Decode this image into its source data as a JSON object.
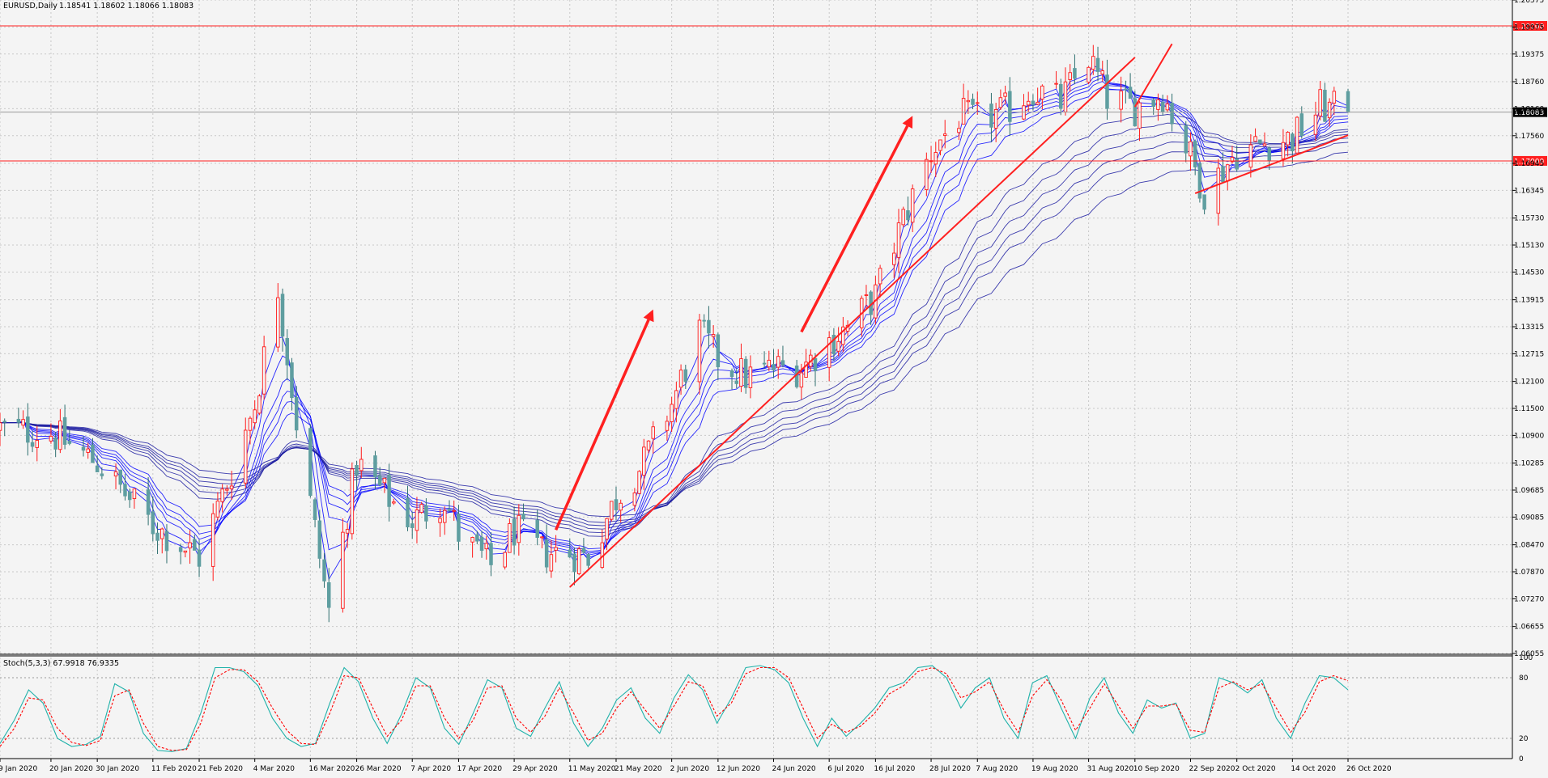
{
  "header": {
    "symbol_label": "EURUSD,Daily",
    "ohlc_label": "1.18541 1.18602 1.18066 1.18083"
  },
  "stoch": {
    "label": "Stoch(5,3,3) 67.9918 76.9335"
  },
  "colors": {
    "background": "#f4f4f4",
    "grid": "#c8c8c8",
    "bull": "#ff1c1c",
    "bear": "#5f9ea0",
    "ma": "#1a1aa0",
    "ma_highlight": "#0000ff",
    "trendline": "#ff2020",
    "stoch_main": "#20b2aa",
    "stoch_signal": "#ff0000"
  },
  "chart_data": [
    {
      "type": "candlestick",
      "title": "EURUSD,Daily",
      "ylim": [
        1.06055,
        1.20575
      ],
      "y_ticks": [
        "1.20575",
        "1.19975",
        "1.19375",
        "1.18760",
        "1.18160",
        "1.17560",
        "1.16945",
        "1.16345",
        "1.15730",
        "1.15130",
        "1.14530",
        "1.13915",
        "1.13315",
        "1.12715",
        "1.12100",
        "1.11500",
        "1.10900",
        "1.10285",
        "1.09685",
        "1.09085",
        "1.08470",
        "1.07870",
        "1.07270",
        "1.06655",
        "1.06055"
      ],
      "x_tick_labels": [
        "9 Jan 2020",
        "20 Jan 2020",
        "30 Jan 2020",
        "11 Feb 2020",
        "21 Feb 2020",
        "4 Mar 2020",
        "16 Mar 2020",
        "26 Mar 2020",
        "7 Apr 2020",
        "17 Apr 2020",
        "29 Apr 2020",
        "11 May 2020",
        "21 May 2020",
        "2 Jun 2020",
        "12 Jun 2020",
        "24 Jun 2020",
        "6 Jul 2020",
        "16 Jul 2020",
        "28 Jul 2020",
        "7 Aug 2020",
        "19 Aug 2020",
        "31 Aug 2020",
        "10 Sep 2020",
        "22 Sep 2020",
        "2 Oct 2020",
        "14 Oct 2020",
        "26 Oct 2020"
      ],
      "horizontal_levels": [
        {
          "price": 1.2,
          "label": "1.20000"
        },
        {
          "price": 1.17,
          "label": "1.17000"
        }
      ],
      "current_price": {
        "price": 1.18083,
        "label": "1.18083"
      },
      "close_path": [
        {
          "date": "9 Jan 2020",
          "close": 1.1105
        },
        {
          "date": "20 Jan 2020",
          "close": 1.1095
        },
        {
          "date": "30 Jan 2020",
          "close": 1.103
        },
        {
          "date": "11 Feb 2020",
          "close": 1.089
        },
        {
          "date": "21 Feb 2020",
          "close": 1.082
        },
        {
          "date": "28 Feb 2020",
          "close": 1.101
        },
        {
          "date": "4 Mar 2020",
          "close": 1.116
        },
        {
          "date": "9 Mar 2020",
          "close": 1.142
        },
        {
          "date": "13 Mar 2020",
          "close": 1.112
        },
        {
          "date": "20 Mar 2020",
          "close": 1.07
        },
        {
          "date": "26 Mar 2020",
          "close": 1.103
        },
        {
          "date": "1 Apr 2020",
          "close": 1.096
        },
        {
          "date": "7 Apr 2020",
          "close": 1.09
        },
        {
          "date": "14 Apr 2020",
          "close": 1.095
        },
        {
          "date": "17 Apr 2020",
          "close": 1.087
        },
        {
          "date": "24 Apr 2020",
          "close": 1.08
        },
        {
          "date": "29 Apr 2020",
          "close": 1.088
        },
        {
          "date": "5 May 2020",
          "close": 1.083
        },
        {
          "date": "11 May 2020",
          "close": 1.083
        },
        {
          "date": "15 May 2020",
          "close": 1.082
        },
        {
          "date": "21 May 2020",
          "close": 1.095
        },
        {
          "date": "27 May 2020",
          "close": 1.103
        },
        {
          "date": "2 Jun 2020",
          "close": 1.116
        },
        {
          "date": "8 Jun 2020",
          "close": 1.132
        },
        {
          "date": "12 Jun 2020",
          "close": 1.126
        },
        {
          "date": "18 Jun 2020",
          "close": 1.122
        },
        {
          "date": "24 Jun 2020",
          "close": 1.124
        },
        {
          "date": "30 Jun 2020",
          "close": 1.124
        },
        {
          "date": "6 Jul 2020",
          "close": 1.13
        },
        {
          "date": "10 Jul 2020",
          "close": 1.133
        },
        {
          "date": "16 Jul 2020",
          "close": 1.14
        },
        {
          "date": "22 Jul 2020",
          "close": 1.157
        },
        {
          "date": "28 Jul 2020",
          "close": 1.172
        },
        {
          "date": "3 Aug 2020",
          "close": 1.18
        },
        {
          "date": "7 Aug 2020",
          "close": 1.179
        },
        {
          "date": "13 Aug 2020",
          "close": 1.181
        },
        {
          "date": "19 Aug 2020",
          "close": 1.186
        },
        {
          "date": "25 Aug 2020",
          "close": 1.183
        },
        {
          "date": "31 Aug 2020",
          "close": 1.193
        },
        {
          "date": "4 Sep 2020",
          "close": 1.184
        },
        {
          "date": "10 Sep 2020",
          "close": 1.182
        },
        {
          "date": "16 Sep 2020",
          "close": 1.185
        },
        {
          "date": "22 Sep 2020",
          "close": 1.171
        },
        {
          "date": "25 Sep 2020",
          "close": 1.163
        },
        {
          "date": "2 Oct 2020",
          "close": 1.172
        },
        {
          "date": "8 Oct 2020",
          "close": 1.174
        },
        {
          "date": "14 Oct 2020",
          "close": 1.175
        },
        {
          "date": "20 Oct 2020",
          "close": 1.182
        },
        {
          "date": "26 Oct 2020",
          "close": 1.1808
        }
      ],
      "trendlines": [
        {
          "from": {
            "date": "11 May 2020",
            "price": 1.0753
          },
          "to": {
            "date": "10 Sep 2020",
            "price": 1.193
          }
        },
        {
          "from": {
            "date": "10 Sep 2020",
            "price": 1.182
          },
          "to": {
            "date": "18 Sep 2020",
            "price": 1.196
          }
        },
        {
          "from": {
            "date": "23 Sep 2020",
            "price": 1.1628
          },
          "to": {
            "date": "26 Oct 2020",
            "price": 1.1757
          }
        }
      ],
      "arrows": [
        {
          "from": {
            "date": "8 May 2020",
            "price": 1.088
          },
          "to": {
            "date": "29 May 2020",
            "price": 1.137
          }
        },
        {
          "from": {
            "date": "30 Jun 2020",
            "price": 1.132
          },
          "to": {
            "date": "24 Jul 2020",
            "price": 1.18
          }
        }
      ],
      "moving_average_ribbon": {
        "count": 12,
        "highlight_count": 6
      }
    },
    {
      "type": "line",
      "title": "Stoch(5,3,3) 67.9918 76.9335",
      "ylim": [
        0,
        100
      ],
      "y_ticks": [
        "100",
        "80",
        "20",
        "0"
      ],
      "levels": [
        20,
        80
      ],
      "series": [
        {
          "values": [
            15,
            38,
            68,
            55,
            20,
            12,
            14,
            22,
            74,
            66,
            25,
            8,
            7,
            10,
            45,
            90,
            90,
            86,
            72,
            40,
            20,
            12,
            15,
            55,
            90,
            76,
            40,
            15,
            44,
            80,
            70,
            30,
            14,
            45,
            78,
            70,
            30,
            22,
            50,
            76,
            35,
            12,
            30,
            58,
            70,
            40,
            25,
            60,
            83,
            68,
            35,
            60,
            90,
            92,
            88,
            75,
            40,
            12,
            40,
            22,
            35,
            50,
            70,
            75,
            90,
            92,
            80,
            50,
            70,
            80,
            40,
            20,
            75,
            82,
            50,
            20,
            60,
            80,
            45,
            25,
            58,
            50,
            55,
            20,
            25,
            80,
            75,
            65,
            78,
            40,
            20,
            55,
            82,
            80,
            68
          ]
        },
        {
          "values": [
            12,
            30,
            60,
            58,
            30,
            16,
            13,
            18,
            62,
            68,
            35,
            12,
            8,
            9,
            35,
            80,
            88,
            88,
            76,
            50,
            28,
            15,
            14,
            45,
            82,
            80,
            50,
            22,
            38,
            72,
            72,
            40,
            20,
            38,
            70,
            72,
            40,
            26,
            42,
            70,
            45,
            18,
            25,
            50,
            66,
            48,
            30,
            52,
            76,
            72,
            42,
            55,
            84,
            90,
            90,
            80,
            50,
            20,
            34,
            26,
            32,
            45,
            64,
            72,
            86,
            90,
            84,
            60,
            66,
            76,
            48,
            26,
            62,
            78,
            58,
            28,
            50,
            74,
            52,
            30,
            52,
            52,
            54,
            28,
            26,
            70,
            76,
            68,
            74,
            50,
            26,
            46,
            76,
            82,
            77
          ]
        }
      ]
    }
  ]
}
